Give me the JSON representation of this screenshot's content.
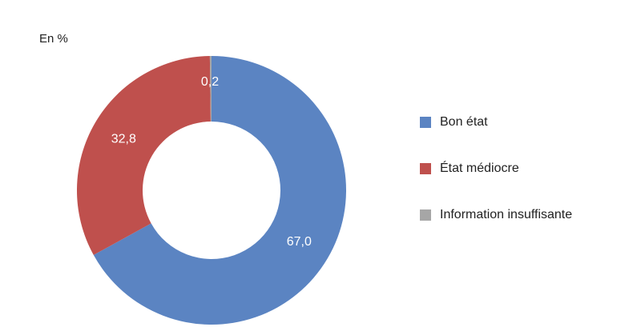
{
  "chart_data": {
    "type": "pie",
    "variant": "donut",
    "unit_label": "En %",
    "categories": [
      "Bon état",
      "État médiocre",
      "Information insuffisante"
    ],
    "values": [
      67.0,
      32.8,
      0.2
    ],
    "value_labels": [
      "67,0",
      "32,8",
      "0,2"
    ],
    "colors": [
      "#5b84c2",
      "#bf504d",
      "#a6a6a6"
    ],
    "legend_position": "right"
  }
}
